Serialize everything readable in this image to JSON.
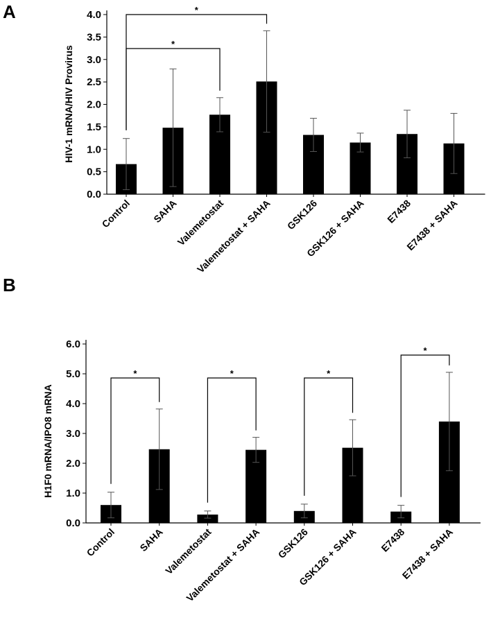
{
  "chart_data": [
    {
      "panel": "A",
      "type": "bar",
      "ylabel": "HIV-1 mRNA/HIV Provirus",
      "xlabel": "",
      "ylim": [
        0,
        4.0
      ],
      "yticks": [
        "0.0",
        "0.5",
        "1.0",
        "1.5",
        "2.0",
        "2.5",
        "3.0",
        "3.5",
        "4.0"
      ],
      "categories": [
        "Control",
        "SAHA",
        "Valemetostat",
        "Valemetostat + SAHA",
        "GSK126",
        "GSK126 + SAHA",
        "E7438",
        "E7438 + SAHA"
      ],
      "values": [
        0.67,
        1.48,
        1.77,
        2.51,
        1.32,
        1.15,
        1.34,
        1.13
      ],
      "errors": [
        0.57,
        1.31,
        0.38,
        1.13,
        0.37,
        0.21,
        0.53,
        0.67
      ],
      "significance": [
        {
          "from": 0,
          "to": 2,
          "label": "*"
        },
        {
          "from": 0,
          "to": 3,
          "label": "*"
        }
      ]
    },
    {
      "panel": "B",
      "type": "bar",
      "ylabel": "H1F0 mRNA/IPO8 mRNA",
      "xlabel": "",
      "ylim": [
        0,
        6.0
      ],
      "yticks": [
        "0.0",
        "1.0",
        "2.0",
        "3.0",
        "4.0",
        "5.0",
        "6.0"
      ],
      "categories": [
        "Control",
        "SAHA",
        "Valemetostat",
        "Valemetostat + SAHA",
        "GSK126",
        "GSK126 + SAHA",
        "E7438",
        "E7438 + SAHA"
      ],
      "values": [
        0.6,
        2.47,
        0.28,
        2.45,
        0.4,
        2.52,
        0.38,
        3.4
      ],
      "errors": [
        0.43,
        1.35,
        0.12,
        0.42,
        0.23,
        0.94,
        0.21,
        1.65
      ],
      "significance": [
        {
          "from": 0,
          "to": 1,
          "label": "*"
        },
        {
          "from": 2,
          "to": 3,
          "label": "*"
        },
        {
          "from": 4,
          "to": 5,
          "label": "*"
        },
        {
          "from": 6,
          "to": 7,
          "label": "*"
        }
      ]
    }
  ]
}
